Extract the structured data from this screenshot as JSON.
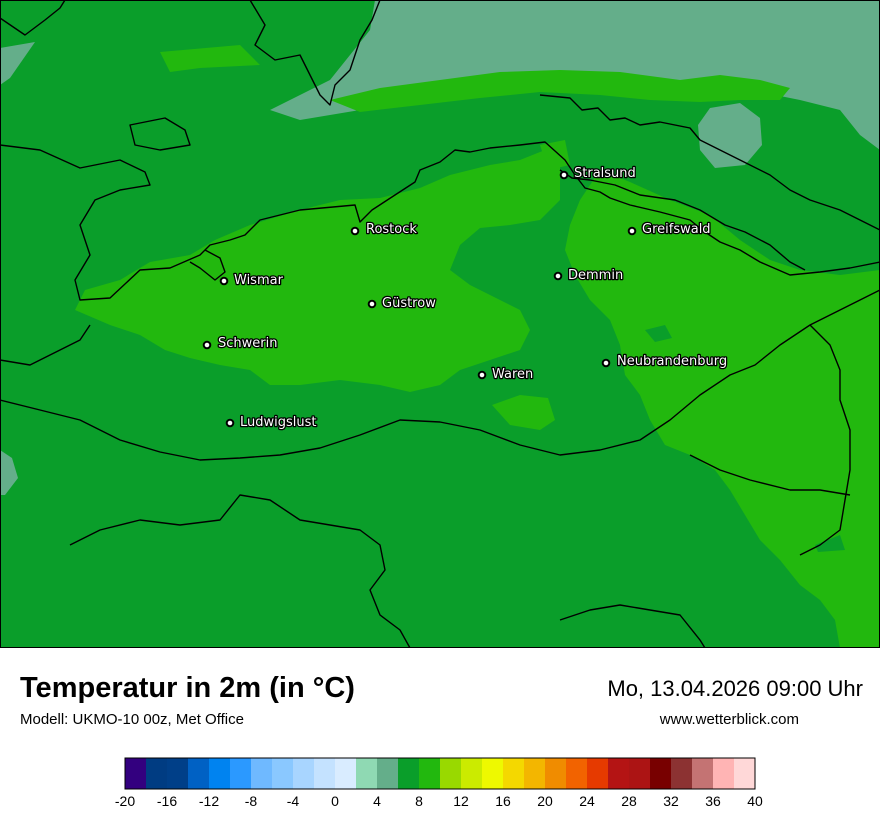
{
  "header": {
    "title": "Temperatur in 2m (in °C)",
    "model": "Modell: UKMO-10 00z, Met Office",
    "datetime": "Mo, 13.04.2026 09:00 Uhr",
    "website": "www.wetterblick.com"
  },
  "map": {
    "cities": [
      {
        "name": "Stralsund"
      },
      {
        "name": "Rostock"
      },
      {
        "name": "Greifswald"
      },
      {
        "name": "Wismar"
      },
      {
        "name": "Demmin"
      },
      {
        "name": "Güstrow"
      },
      {
        "name": "Schwerin"
      },
      {
        "name": "Neubrandenburg"
      },
      {
        "name": "Waren"
      },
      {
        "name": "Ludwigslust"
      }
    ],
    "colors": {
      "sea": "#64ae8a",
      "temp_6_8": "#0a9e2a",
      "temp_8_10": "#22b80e",
      "border": "#000000"
    }
  },
  "legend": {
    "colors": [
      "#33007f",
      "#003c82",
      "#003f88",
      "#0061c4",
      "#0083f0",
      "#2b99ff",
      "#6fb9ff",
      "#8ac8ff",
      "#a8d5ff",
      "#c4e2ff",
      "#d9ecff",
      "#8fd9b3",
      "#64ae8a",
      "#0a9e2a",
      "#22b80e",
      "#99d900",
      "#cbeb00",
      "#eef900",
      "#f4d800",
      "#f3b600",
      "#f08c00",
      "#f26300",
      "#e63a00",
      "#b41414",
      "#ac1414",
      "#780000",
      "#8c3232",
      "#c47373",
      "#ffb4b4",
      "#ffd8d8"
    ],
    "tick_labels": [
      "-20",
      "-16",
      "-12",
      "-8",
      "-4",
      "0",
      "4",
      "8",
      "12",
      "16",
      "20",
      "24",
      "28",
      "32",
      "36",
      "40"
    ]
  }
}
